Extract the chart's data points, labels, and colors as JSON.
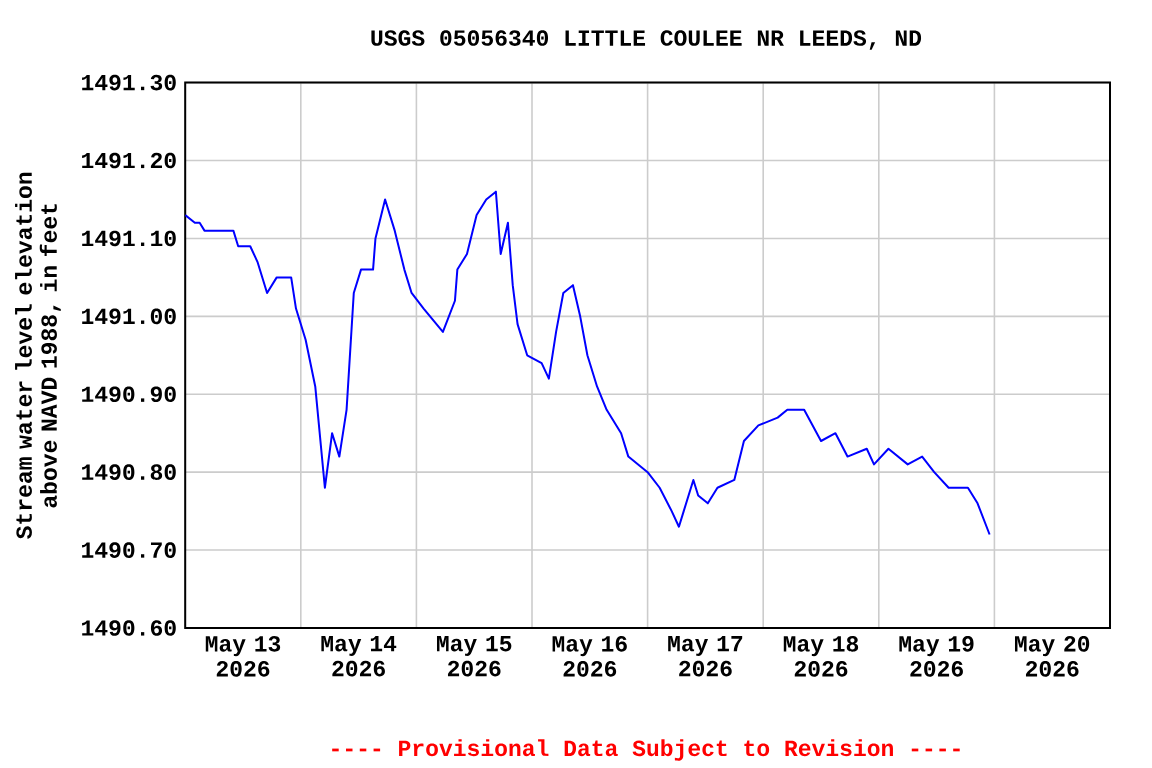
{
  "chart_data": {
    "type": "line",
    "title": "USGS 05056340 LITTLE COULEE NR LEEDS, ND",
    "ylabel": "Stream water level elevation above NAVD 1988, in feet",
    "annotations": [
      "---- Provisional Data Subject to Revision ----"
    ],
    "x": [
      "2026-05-13T00:00",
      "2026-05-13T02:00",
      "2026-05-13T03:00",
      "2026-05-13T04:00",
      "2026-05-13T10:00",
      "2026-05-13T11:00",
      "2026-05-13T13:30",
      "2026-05-13T15:00",
      "2026-05-13T17:00",
      "2026-05-13T19:00",
      "2026-05-13T22:00",
      "2026-05-13T23:00",
      "2026-05-14T01:00",
      "2026-05-14T03:00",
      "2026-05-14T05:00",
      "2026-05-14T06:30",
      "2026-05-14T08:00",
      "2026-05-14T09:30",
      "2026-05-14T11:00",
      "2026-05-14T12:30",
      "2026-05-14T15:00",
      "2026-05-14T15:30",
      "2026-05-14T17:30",
      "2026-05-14T19:30",
      "2026-05-14T21:30",
      "2026-05-14T23:00",
      "2026-05-15T01:30",
      "2026-05-15T05:30",
      "2026-05-15T08:00",
      "2026-05-15T08:30",
      "2026-05-15T10:30",
      "2026-05-15T12:30",
      "2026-05-15T14:30",
      "2026-05-15T16:30",
      "2026-05-15T17:30",
      "2026-05-15T19:00",
      "2026-05-15T20:00",
      "2026-05-15T21:00",
      "2026-05-15T23:00",
      "2026-05-16T02:00",
      "2026-05-16T03:30",
      "2026-05-16T05:00",
      "2026-05-16T06:30",
      "2026-05-16T08:30",
      "2026-05-16T10:00",
      "2026-05-16T11:30",
      "2026-05-16T13:30",
      "2026-05-16T15:30",
      "2026-05-16T18:30",
      "2026-05-16T20:00",
      "2026-05-17T00:00",
      "2026-05-17T02:30",
      "2026-05-17T05:00",
      "2026-05-17T06:30",
      "2026-05-17T07:30",
      "2026-05-17T09:30",
      "2026-05-17T10:30",
      "2026-05-17T12:30",
      "2026-05-17T14:30",
      "2026-05-17T18:00",
      "2026-05-17T20:00",
      "2026-05-17T23:00",
      "2026-05-18T03:00",
      "2026-05-18T05:00",
      "2026-05-18T08:30",
      "2026-05-18T12:00",
      "2026-05-18T15:00",
      "2026-05-18T17:30",
      "2026-05-18T21:30",
      "2026-05-18T23:00",
      "2026-05-19T02:00",
      "2026-05-19T06:00",
      "2026-05-19T09:00",
      "2026-05-19T11:30",
      "2026-05-19T14:30",
      "2026-05-19T18:30",
      "2026-05-19T20:30",
      "2026-05-19T23:00"
    ],
    "series": [
      {
        "color": "#0000ff",
        "values": [
          1491.13,
          1491.12,
          1491.12,
          1491.11,
          1491.11,
          1491.09,
          1491.09,
          1491.07,
          1491.03,
          1491.05,
          1491.05,
          1491.01,
          1490.97,
          1490.91,
          1490.78,
          1490.85,
          1490.82,
          1490.88,
          1491.03,
          1491.06,
          1491.06,
          1491.1,
          1491.15,
          1491.11,
          1491.06,
          1491.03,
          1491.01,
          1490.98,
          1491.02,
          1491.06,
          1491.08,
          1491.13,
          1491.15,
          1491.16,
          1491.08,
          1491.12,
          1491.04,
          1490.99,
          1490.95,
          1490.94,
          1490.92,
          1490.98,
          1491.03,
          1491.04,
          1491.0,
          1490.95,
          1490.91,
          1490.88,
          1490.85,
          1490.82,
          1490.8,
          1490.78,
          1490.75,
          1490.73,
          1490.75,
          1490.79,
          1490.77,
          1490.76,
          1490.78,
          1490.79,
          1490.84,
          1490.86,
          1490.87,
          1490.88,
          1490.88,
          1490.84,
          1490.85,
          1490.82,
          1490.83,
          1490.81,
          1490.83,
          1490.81,
          1490.82,
          1490.8,
          1490.78,
          1490.78,
          1490.76,
          1490.72
        ]
      }
    ],
    "xlim": [
      "2026-05-13T00:00",
      "2026-05-21T00:00"
    ],
    "xticks": [
      {
        "value": "2026-05-13T00:00",
        "label": null
      },
      {
        "value": "2026-05-14T00:00",
        "label": null
      },
      {
        "value": "2026-05-15T00:00",
        "label": null
      },
      {
        "value": "2026-05-16T00:00",
        "label": null
      },
      {
        "value": "2026-05-17T00:00",
        "label": null
      },
      {
        "value": "2026-05-18T00:00",
        "label": null
      },
      {
        "value": "2026-05-19T00:00",
        "label": null
      },
      {
        "value": "2026-05-20T00:00",
        "label": null
      },
      {
        "value": "2026-05-21T00:00",
        "label": null
      },
      {
        "value": "2026-05-13T12:00",
        "label": "May 13 2026"
      },
      {
        "value": "2026-05-14T12:00",
        "label": "May 14 2026"
      },
      {
        "value": "2026-05-15T12:00",
        "label": "May 15 2026"
      },
      {
        "value": "2026-05-16T12:00",
        "label": "May 16 2026"
      },
      {
        "value": "2026-05-17T12:00",
        "label": "May 17 2026"
      },
      {
        "value": "2026-05-18T12:00",
        "label": "May 18 2026"
      },
      {
        "value": "2026-05-19T12:00",
        "label": "May 19 2026"
      },
      {
        "value": "2026-05-20T12:00",
        "label": "May 20 2026"
      }
    ],
    "ylim": [
      1490.6,
      1491.3
    ],
    "yticks": [
      {
        "value": 1490.6,
        "label": "1490.60"
      },
      {
        "value": 1490.7,
        "label": "1490.70"
      },
      {
        "value": 1490.8,
        "label": "1490.80"
      },
      {
        "value": 1490.9,
        "label": "1490.90"
      },
      {
        "value": 1491.0,
        "label": "1491.00"
      },
      {
        "value": 1491.1,
        "label": "1491.10"
      },
      {
        "value": 1491.2,
        "label": "1491.20"
      },
      {
        "value": 1491.3,
        "label": "1491.30"
      }
    ],
    "grid": true
  }
}
